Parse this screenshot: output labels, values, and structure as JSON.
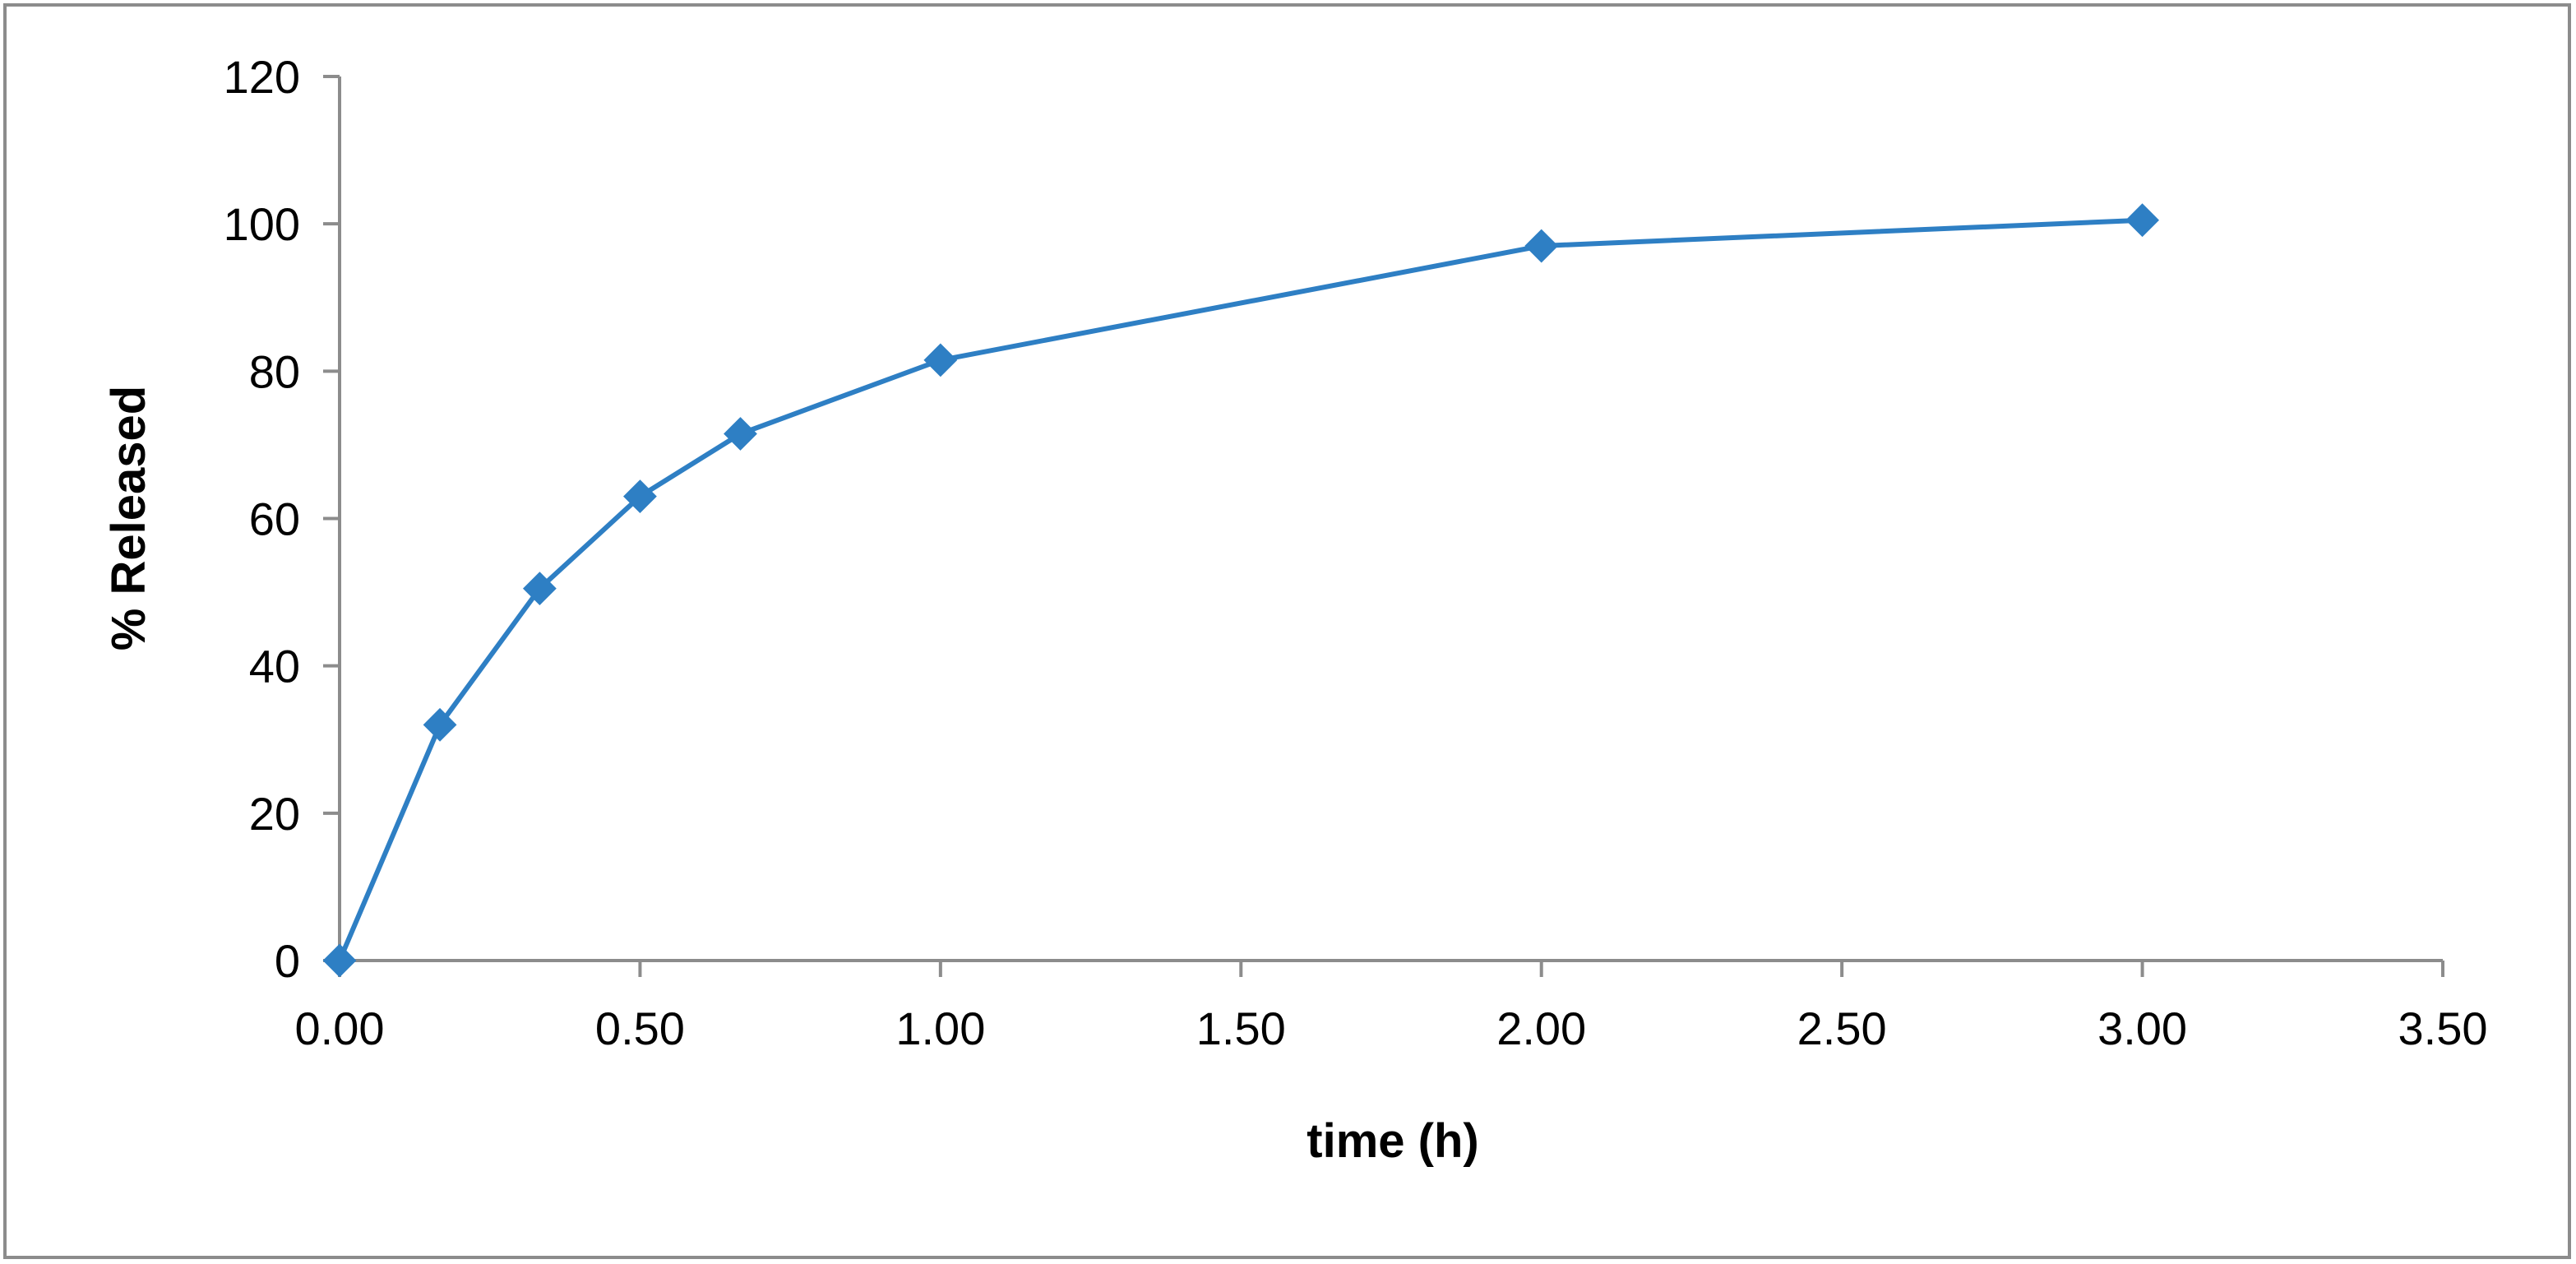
{
  "chart_data": {
    "type": "line",
    "title": "",
    "xlabel": "time (h)",
    "ylabel": "% Released",
    "xlim": [
      0,
      3.5
    ],
    "ylim": [
      0,
      120
    ],
    "x_ticks": [
      0,
      0.5,
      1,
      1.5,
      2,
      2.5,
      3,
      3.5
    ],
    "x_tick_labels": [
      "0.00",
      "0.50",
      "1.00",
      "1.50",
      "2.00",
      "2.50",
      "3.00",
      "3.50"
    ],
    "y_ticks": [
      0,
      20,
      40,
      60,
      80,
      100,
      120
    ],
    "y_tick_labels": [
      "0",
      "20",
      "40",
      "60",
      "80",
      "100",
      "120"
    ],
    "grid": false,
    "legend": "none",
    "series": [
      {
        "name": "% Released",
        "color": "#2e7fc4",
        "marker": "diamond",
        "x": [
          0,
          0.167,
          0.333,
          0.5,
          0.667,
          1,
          2,
          3
        ],
        "values": [
          0,
          32,
          50.5,
          63,
          71.5,
          81.5,
          97,
          100.5
        ]
      }
    ]
  }
}
